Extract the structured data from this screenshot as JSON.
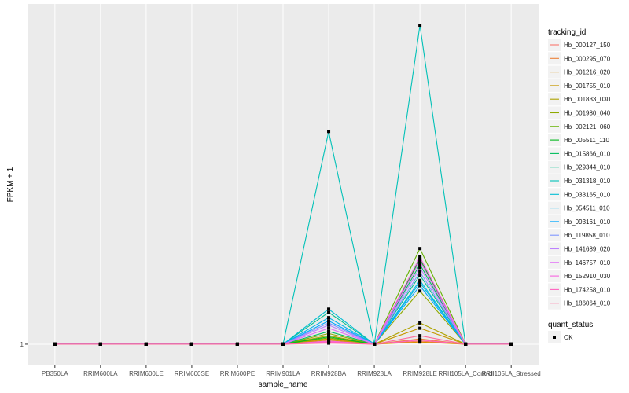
{
  "chart_data": {
    "type": "line",
    "xlabel": "sample_name",
    "ylabel": "FPKM + 1",
    "y_tick_labels": [
      "1"
    ],
    "x": [
      "PB350LA",
      "RRIM600LA",
      "RRIM600LE",
      "RRIM600SE",
      "RRIM600PE",
      "RRIM901LA",
      "RRIM928BA",
      "RRIM928LA",
      "RRIM928LE",
      "RRII105LA_Control",
      "RRII105LA_Stressed"
    ],
    "ylim": [
      0.8,
      4.2
    ],
    "grid": true,
    "legend_position": "right",
    "legend_title": "tracking_id",
    "series": [
      {
        "name": "Hb_000127_150",
        "color": "#F8766D",
        "values": [
          1,
          1,
          1,
          1,
          1,
          1,
          1.02,
          1,
          1.03,
          1,
          1
        ]
      },
      {
        "name": "Hb_000295_070",
        "color": "#EC8239",
        "values": [
          1,
          1,
          1,
          1,
          1,
          1,
          1.03,
          1,
          1.05,
          1,
          1
        ]
      },
      {
        "name": "Hb_001216_020",
        "color": "#DB8E00",
        "values": [
          1,
          1,
          1,
          1,
          1,
          1,
          1.05,
          1,
          1.02,
          1,
          1
        ]
      },
      {
        "name": "Hb_001755_010",
        "color": "#C79800",
        "values": [
          1,
          1,
          1,
          1,
          1,
          1,
          1.04,
          1,
          1.15,
          1,
          1
        ]
      },
      {
        "name": "Hb_001833_030",
        "color": "#AEA200",
        "values": [
          1,
          1,
          1,
          1,
          1,
          1,
          1.08,
          1,
          1.2,
          1,
          1
        ]
      },
      {
        "name": "Hb_001980_040",
        "color": "#8FAA00",
        "values": [
          1,
          1,
          1,
          1,
          1,
          1,
          1.1,
          1,
          1.5,
          1,
          1
        ]
      },
      {
        "name": "Hb_002121_060",
        "color": "#64B200",
        "values": [
          1,
          1,
          1,
          1,
          1,
          1,
          1.06,
          1,
          1.9,
          1,
          1
        ]
      },
      {
        "name": "Hb_005511_110",
        "color": "#00B81B",
        "values": [
          1,
          1,
          1,
          1,
          1,
          1,
          1.07,
          1,
          1.8,
          1,
          1
        ]
      },
      {
        "name": "Hb_015866_010",
        "color": "#00BD5C",
        "values": [
          1,
          1,
          1,
          1,
          1,
          1,
          1.12,
          1,
          1.75,
          1,
          1
        ]
      },
      {
        "name": "Hb_029344_010",
        "color": "#00C08E",
        "values": [
          1,
          1,
          1,
          1,
          1,
          1,
          1.3,
          1,
          1.65,
          1,
          1
        ]
      },
      {
        "name": "Hb_031318_010",
        "color": "#00C1B7",
        "values": [
          1,
          1,
          1,
          1,
          1,
          1,
          3.0,
          1,
          4.0,
          1,
          1
        ]
      },
      {
        "name": "Hb_033165_010",
        "color": "#00BDD4",
        "values": [
          1,
          1,
          1,
          1,
          1,
          1,
          1.33,
          1,
          1.58,
          1,
          1
        ]
      },
      {
        "name": "Hb_054511_010",
        "color": "#00B5EE",
        "values": [
          1,
          1,
          1,
          1,
          1,
          1,
          1.25,
          1,
          1.6,
          1,
          1
        ]
      },
      {
        "name": "Hb_093161_010",
        "color": "#00A7FF",
        "values": [
          1,
          1,
          1,
          1,
          1,
          1,
          1.22,
          1,
          1.55,
          1,
          1
        ]
      },
      {
        "name": "Hb_119858_010",
        "color": "#7F96FF",
        "values": [
          1,
          1,
          1,
          1,
          1,
          1,
          1.2,
          1,
          1.68,
          1,
          1
        ]
      },
      {
        "name": "Hb_141689_020",
        "color": "#BC81FF",
        "values": [
          1,
          1,
          1,
          1,
          1,
          1,
          1.18,
          1,
          1.72,
          1,
          1
        ]
      },
      {
        "name": "Hb_146757_010",
        "color": "#E26EF7",
        "values": [
          1,
          1,
          1,
          1,
          1,
          1,
          1.15,
          1,
          1.78,
          1,
          1
        ]
      },
      {
        "name": "Hb_152910_030",
        "color": "#F863DF",
        "values": [
          1,
          1,
          1,
          1,
          1,
          1,
          1.03,
          1,
          1.82,
          1,
          1
        ]
      },
      {
        "name": "Hb_174258_010",
        "color": "#FF62BF",
        "values": [
          1,
          1,
          1,
          1,
          1,
          1,
          1.02,
          1,
          1.04,
          1,
          1
        ]
      },
      {
        "name": "Hb_186064_010",
        "color": "#FF6A9A",
        "values": [
          1,
          1,
          1,
          1,
          1,
          1,
          1.01,
          1,
          1.08,
          1,
          1
        ]
      }
    ],
    "shape_legend": {
      "title": "quant_status",
      "entries": [
        "OK"
      ]
    }
  }
}
